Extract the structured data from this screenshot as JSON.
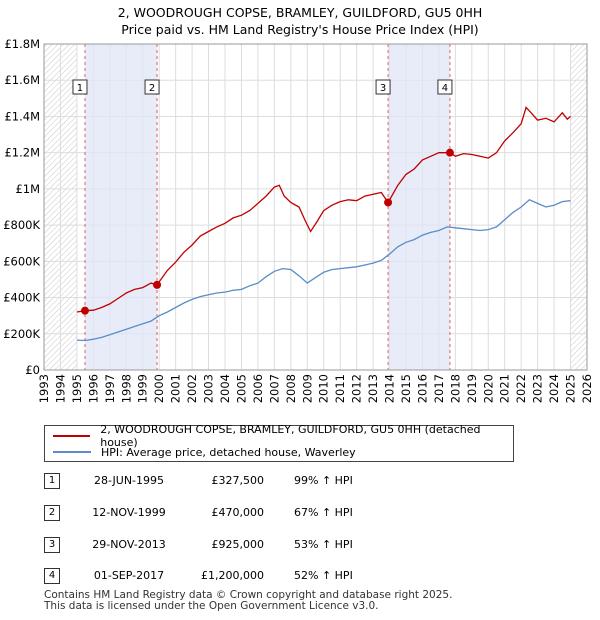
{
  "chart_data": {
    "type": "line",
    "title": "2, WOODROUGH COPSE, BRAMLEY, GUILDFORD, GU5 0HH",
    "subtitle": "Price paid vs. HM Land Registry's House Price Index (HPI)",
    "xlabel": "",
    "ylabel": "",
    "xlim": [
      1993,
      2026
    ],
    "ylim": [
      0,
      1800000
    ],
    "x_ticks": [
      1993,
      1994,
      1995,
      1996,
      1997,
      1998,
      1999,
      2000,
      2001,
      2002,
      2003,
      2004,
      2005,
      2006,
      2007,
      2008,
      2009,
      2010,
      2011,
      2012,
      2013,
      2014,
      2015,
      2016,
      2017,
      2018,
      2019,
      2020,
      2021,
      2022,
      2023,
      2024,
      2025,
      2026
    ],
    "y_ticks": [
      {
        "value": 0,
        "label": "£0"
      },
      {
        "value": 200000,
        "label": "£200K"
      },
      {
        "value": 400000,
        "label": "£400K"
      },
      {
        "value": 600000,
        "label": "£600K"
      },
      {
        "value": 800000,
        "label": "£800K"
      },
      {
        "value": 1000000,
        "label": "£1M"
      },
      {
        "value": 1200000,
        "label": "£1.2M"
      },
      {
        "value": 1400000,
        "label": "£1.4M"
      },
      {
        "value": 1600000,
        "label": "£1.6M"
      },
      {
        "value": 1800000,
        "label": "£1.8M"
      }
    ],
    "hatch_before": 1995.0,
    "hatch_after": 2025.0,
    "shaded_spans": [
      [
        1995.49,
        1999.87
      ],
      [
        2013.91,
        2017.67
      ]
    ],
    "series": [
      {
        "name": "2, WOODROUGH COPSE, BRAMLEY, GUILDFORD, GU5 0HH (detached house)",
        "color": "#c00000",
        "x": [
          1995.0,
          1995.49,
          1996.0,
          1996.5,
          1997.0,
          1997.5,
          1998.0,
          1998.5,
          1999.0,
          1999.5,
          1999.87,
          2000.5,
          2001.0,
          2001.5,
          2002.0,
          2002.5,
          2003.0,
          2003.5,
          2004.0,
          2004.5,
          2005.0,
          2005.5,
          2006.0,
          2006.5,
          2007.0,
          2007.3,
          2007.6,
          2008.0,
          2008.5,
          2008.9,
          2009.2,
          2009.6,
          2010.0,
          2010.5,
          2011.0,
          2011.5,
          2012.0,
          2012.5,
          2013.0,
          2013.5,
          2013.91,
          2014.5,
          2015.0,
          2015.5,
          2016.0,
          2016.5,
          2017.0,
          2017.67,
          2018.0,
          2018.5,
          2019.0,
          2019.5,
          2020.0,
          2020.5,
          2021.0,
          2021.5,
          2022.0,
          2022.3,
          2022.6,
          2023.0,
          2023.5,
          2024.0,
          2024.5,
          2024.8,
          2025.0
        ],
        "y": [
          320000,
          327500,
          330000,
          345000,
          365000,
          395000,
          425000,
          445000,
          455000,
          480000,
          470000,
          550000,
          595000,
          650000,
          690000,
          740000,
          765000,
          790000,
          810000,
          840000,
          855000,
          880000,
          920000,
          960000,
          1010000,
          1020000,
          960000,
          925000,
          900000,
          820000,
          765000,
          820000,
          880000,
          910000,
          930000,
          940000,
          935000,
          960000,
          970000,
          980000,
          925000,
          1020000,
          1080000,
          1110000,
          1160000,
          1180000,
          1200000,
          1200000,
          1180000,
          1195000,
          1190000,
          1180000,
          1170000,
          1200000,
          1265000,
          1310000,
          1360000,
          1450000,
          1420000,
          1380000,
          1390000,
          1370000,
          1420000,
          1385000,
          1400000
        ]
      },
      {
        "name": "HPI: Average price, detached house, Waverley",
        "color": "#5b8cc8",
        "x": [
          1995.0,
          1995.5,
          1996.0,
          1996.5,
          1997.0,
          1997.5,
          1998.0,
          1998.5,
          1999.0,
          1999.5,
          2000.0,
          2000.5,
          2001.0,
          2001.5,
          2002.0,
          2002.5,
          2003.0,
          2003.5,
          2004.0,
          2004.5,
          2005.0,
          2005.5,
          2006.0,
          2006.5,
          2007.0,
          2007.5,
          2008.0,
          2008.5,
          2009.0,
          2009.5,
          2010.0,
          2010.5,
          2011.0,
          2011.5,
          2012.0,
          2012.5,
          2013.0,
          2013.5,
          2014.0,
          2014.5,
          2015.0,
          2015.5,
          2016.0,
          2016.5,
          2017.0,
          2017.5,
          2018.0,
          2018.5,
          2019.0,
          2019.5,
          2020.0,
          2020.5,
          2021.0,
          2021.5,
          2022.0,
          2022.5,
          2023.0,
          2023.5,
          2024.0,
          2024.5,
          2025.0
        ],
        "y": [
          165000,
          163000,
          170000,
          180000,
          195000,
          210000,
          225000,
          240000,
          255000,
          270000,
          300000,
          320000,
          345000,
          370000,
          390000,
          405000,
          415000,
          425000,
          430000,
          440000,
          445000,
          465000,
          480000,
          515000,
          545000,
          560000,
          555000,
          520000,
          480000,
          510000,
          540000,
          555000,
          560000,
          565000,
          570000,
          580000,
          590000,
          605000,
          640000,
          680000,
          705000,
          720000,
          745000,
          760000,
          770000,
          790000,
          785000,
          780000,
          775000,
          770000,
          775000,
          790000,
          830000,
          870000,
          900000,
          940000,
          920000,
          900000,
          910000,
          930000,
          935000
        ]
      }
    ],
    "sales": [
      {
        "num": "1",
        "x": 1995.49,
        "y": 327500
      },
      {
        "num": "2",
        "x": 1999.87,
        "y": 470000
      },
      {
        "num": "3",
        "x": 2013.91,
        "y": 925000
      },
      {
        "num": "4",
        "x": 2017.67,
        "y": 1200000
      }
    ]
  },
  "legend": {
    "property_label": "2, WOODROUGH COPSE, BRAMLEY, GUILDFORD, GU5 0HH (detached house)",
    "hpi_label": "HPI: Average price, detached house, Waverley"
  },
  "sales_table": [
    {
      "num": "1",
      "date": "28-JUN-1995",
      "price": "£327,500",
      "hpi": "99% ↑ HPI"
    },
    {
      "num": "2",
      "date": "12-NOV-1999",
      "price": "£470,000",
      "hpi": "67% ↑ HPI"
    },
    {
      "num": "3",
      "date": "29-NOV-2013",
      "price": "£925,000",
      "hpi": "53% ↑ HPI"
    },
    {
      "num": "4",
      "date": "01-SEP-2017",
      "price": "£1,200,000",
      "hpi": "52% ↑ HPI"
    }
  ],
  "footer": {
    "line1": "Contains HM Land Registry data © Crown copyright and database right 2025.",
    "line2": "This data is licensed under the Open Government Licence v3.0."
  }
}
